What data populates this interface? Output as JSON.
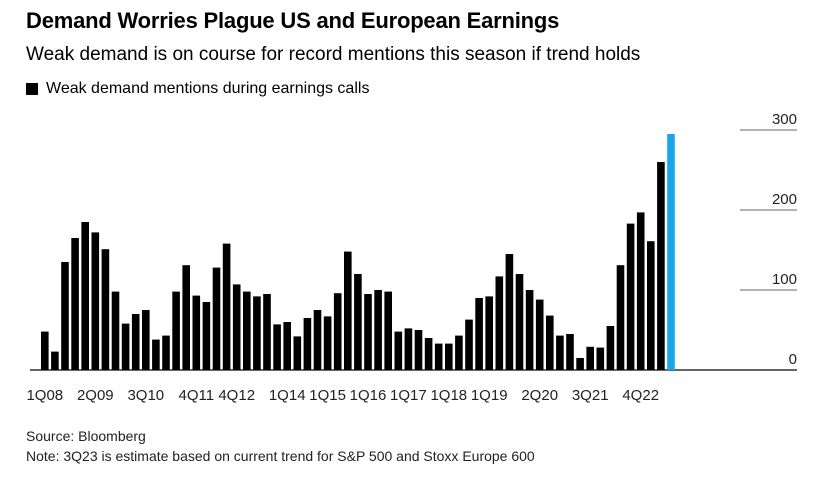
{
  "chart_data": {
    "type": "bar",
    "title": "Demand Worries Plague US and European Earnings",
    "subtitle": "Weak demand is on course for record mentions this season if trend holds",
    "legend": [
      {
        "label": "Weak demand mentions during earnings calls",
        "color": "#000000"
      }
    ],
    "categories": [
      "1Q08",
      "2Q08",
      "3Q08",
      "4Q08",
      "1Q09",
      "2Q09",
      "3Q09",
      "4Q09",
      "1Q10",
      "2Q10",
      "3Q10",
      "4Q10",
      "1Q11",
      "2Q11",
      "3Q11",
      "4Q11",
      "1Q12",
      "2Q12",
      "3Q12",
      "4Q12",
      "1Q13",
      "2Q13",
      "3Q13",
      "4Q13",
      "1Q14",
      "2Q14",
      "3Q14",
      "4Q14",
      "1Q15",
      "2Q15",
      "3Q15",
      "4Q15",
      "1Q16",
      "2Q16",
      "3Q16",
      "4Q16",
      "1Q17",
      "2Q17",
      "3Q17",
      "4Q17",
      "1Q18",
      "2Q18",
      "3Q18",
      "4Q18",
      "1Q19",
      "2Q19",
      "3Q19",
      "4Q19",
      "1Q20",
      "2Q20",
      "3Q20",
      "4Q20",
      "1Q21",
      "2Q21",
      "3Q21",
      "4Q21",
      "1Q22",
      "2Q22",
      "3Q22",
      "4Q22",
      "1Q23",
      "2Q23",
      "3Q23"
    ],
    "values": [
      48,
      23,
      135,
      165,
      185,
      172,
      151,
      98,
      58,
      70,
      75,
      38,
      43,
      98,
      131,
      93,
      85,
      128,
      158,
      107,
      98,
      92,
      95,
      57,
      60,
      42,
      65,
      75,
      67,
      96,
      148,
      120,
      95,
      100,
      98,
      48,
      52,
      50,
      40,
      33,
      33,
      43,
      63,
      90,
      92,
      117,
      145,
      120,
      100,
      88,
      68,
      43,
      45,
      15,
      29,
      28,
      55,
      131,
      183,
      197,
      161,
      260,
      295
    ],
    "estimate_index": 62,
    "colors": {
      "bar": "#000000",
      "estimate": "#1aa6ea",
      "gridline": "#333333"
    },
    "x_tick_labels": [
      "1Q08",
      "2Q09",
      "3Q10",
      "4Q11",
      "4Q12",
      "1Q14",
      "1Q15",
      "1Q16",
      "1Q17",
      "1Q18",
      "1Q19",
      "2Q20",
      "3Q21",
      "4Q22"
    ],
    "y_ticks": [
      0,
      100,
      200,
      300
    ],
    "ylim": [
      0,
      300
    ],
    "xlabel": "",
    "ylabel": "",
    "source": "Source: Bloomberg",
    "note": "Note: 3Q23 is estimate based on current trend for S&P 500 and Stoxx Europe 600"
  }
}
